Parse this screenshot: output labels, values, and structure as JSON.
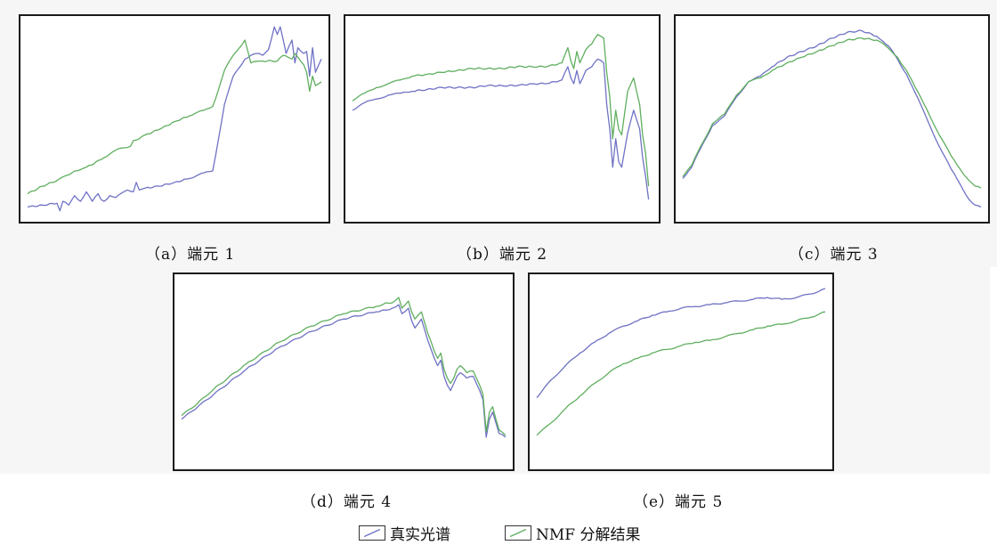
{
  "colors": {
    "real": "#6f72c4",
    "nmf": "#5fae5f"
  },
  "legend": {
    "real_label": "真实光谱",
    "nmf_label": "NMF 分解结果"
  },
  "chart_data": [
    {
      "type": "line",
      "caption": "（a）端元 1",
      "xlim": [
        0,
        100
      ],
      "ylim": [
        0,
        100
      ],
      "series": [
        {
          "name": "真实光谱",
          "x": [
            0,
            5,
            10,
            11,
            12,
            14,
            16,
            18,
            20,
            22,
            24,
            25,
            26,
            28,
            30,
            34,
            36,
            37,
            38,
            40,
            45,
            50,
            55,
            60,
            63,
            65,
            67,
            70,
            74,
            76,
            78,
            80,
            82,
            84,
            85,
            86,
            88,
            90,
            91,
            92,
            94,
            95,
            96,
            97,
            98,
            100
          ],
          "values": [
            4,
            5,
            6,
            2,
            7,
            5,
            10,
            7,
            12,
            7,
            11,
            8,
            7,
            10,
            9,
            13,
            12,
            17,
            13,
            14,
            15,
            17,
            19,
            22,
            23,
            40,
            58,
            73,
            82,
            84,
            85,
            84,
            87,
            99,
            95,
            99,
            85,
            92,
            80,
            88,
            85,
            86,
            73,
            88,
            75,
            82
          ]
        },
        {
          "name": "NMF 分解结果",
          "x": [
            0,
            5,
            10,
            14,
            16,
            20,
            25,
            26,
            28,
            30,
            35,
            36,
            38,
            40,
            45,
            50,
            55,
            60,
            63,
            65,
            67,
            70,
            74,
            76,
            80,
            85,
            87,
            90,
            91,
            92,
            94,
            95,
            96,
            97,
            98,
            100
          ],
          "values": [
            11,
            15,
            18,
            21,
            23,
            25,
            29,
            30,
            32,
            34,
            36,
            39,
            40,
            42,
            45,
            49,
            52,
            55,
            57,
            66,
            76,
            84,
            92,
            80,
            81,
            81,
            84,
            82,
            85,
            83,
            79,
            75,
            65,
            73,
            68,
            70
          ]
        }
      ]
    },
    {
      "type": "line",
      "caption": "（b）端元 2",
      "xlim": [
        0,
        100
      ],
      "ylim": [
        0,
        100
      ],
      "series": [
        {
          "name": "真实光谱",
          "x": [
            0,
            4,
            8,
            12,
            16,
            20,
            25,
            30,
            35,
            40,
            45,
            50,
            55,
            60,
            65,
            70,
            72,
            73,
            74,
            75,
            76,
            78,
            80,
            82,
            84,
            85,
            86,
            87,
            88,
            89,
            90,
            92,
            94,
            96,
            97,
            98,
            99
          ],
          "values": [
            55,
            59,
            61,
            63,
            64,
            65,
            66,
            67,
            67,
            67,
            68,
            68,
            68,
            69,
            69,
            71,
            78,
            72,
            69,
            76,
            69,
            76,
            78,
            82,
            80,
            58,
            45,
            25,
            40,
            28,
            25,
            43,
            55,
            45,
            30,
            20,
            8
          ]
        },
        {
          "name": "NMF 分解结果",
          "x": [
            0,
            4,
            8,
            12,
            16,
            20,
            25,
            30,
            35,
            40,
            45,
            50,
            55,
            60,
            65,
            70,
            72,
            73,
            74,
            75,
            76,
            78,
            80,
            82,
            84,
            85,
            86,
            87,
            88,
            89,
            90,
            92,
            94,
            96,
            97,
            98,
            99
          ],
          "values": [
            60,
            64,
            67,
            69,
            71,
            73,
            74,
            75,
            76,
            77,
            77,
            77,
            78,
            78,
            78,
            80,
            88,
            81,
            77,
            86,
            80,
            87,
            90,
            95,
            93,
            75,
            62,
            40,
            55,
            45,
            42,
            65,
            72,
            58,
            42,
            32,
            15
          ]
        }
      ]
    },
    {
      "type": "line",
      "caption": "（c）端元 3",
      "xlim": [
        0,
        100
      ],
      "ylim": [
        0,
        100
      ],
      "series": [
        {
          "name": "真实光谱",
          "x": [
            0,
            3,
            6,
            10,
            14,
            18,
            22,
            26,
            30,
            35,
            40,
            45,
            50,
            55,
            60,
            65,
            68,
            70,
            72,
            75,
            78,
            82,
            86,
            90,
            93,
            96,
            98,
            100
          ],
          "values": [
            19,
            25,
            35,
            47,
            52,
            62,
            70,
            73,
            78,
            83,
            86,
            89,
            93,
            96,
            97,
            94,
            90,
            87,
            82,
            74,
            64,
            50,
            36,
            24,
            16,
            8,
            5,
            4
          ]
        },
        {
          "name": "NMF 分解结果",
          "x": [
            0,
            3,
            6,
            10,
            14,
            18,
            22,
            26,
            30,
            35,
            40,
            45,
            50,
            55,
            60,
            65,
            68,
            70,
            72,
            75,
            78,
            82,
            86,
            90,
            93,
            96,
            98,
            100
          ],
          "values": [
            20,
            26,
            36,
            48,
            53,
            63,
            70,
            72,
            76,
            80,
            83,
            86,
            89,
            92,
            93,
            92,
            89,
            86,
            83,
            76,
            67,
            55,
            42,
            31,
            24,
            18,
            15,
            14
          ]
        }
      ]
    },
    {
      "type": "line",
      "caption": "（d）端元 4",
      "xlim": [
        0,
        100
      ],
      "ylim": [
        0,
        100
      ],
      "series": [
        {
          "name": "真实光谱",
          "x": [
            0,
            5,
            10,
            20,
            30,
            40,
            50,
            60,
            62,
            63,
            65,
            67,
            68,
            70,
            71,
            72,
            74,
            75,
            76,
            78,
            79,
            80,
            81,
            82,
            83,
            84,
            85,
            86,
            88,
            90,
            91,
            92,
            93,
            94,
            95,
            96,
            97,
            98,
            100
          ],
          "values": [
            24,
            31,
            38,
            52,
            64,
            73,
            80,
            84,
            85,
            85,
            86,
            88,
            83,
            86,
            79,
            75,
            80,
            74,
            68,
            58,
            54,
            57,
            48,
            43,
            40,
            44,
            48,
            50,
            47,
            48,
            44,
            40,
            35,
            14,
            24,
            28,
            22,
            16,
            14
          ]
        },
        {
          "name": "NMF 分解结果",
          "x": [
            0,
            5,
            10,
            20,
            30,
            40,
            50,
            60,
            62,
            63,
            65,
            67,
            68,
            70,
            71,
            72,
            74,
            75,
            76,
            78,
            79,
            80,
            81,
            82,
            83,
            84,
            85,
            86,
            88,
            90,
            91,
            92,
            93,
            94,
            95,
            96,
            97,
            98,
            100
          ],
          "values": [
            26,
            33,
            41,
            55,
            67,
            76,
            83,
            87,
            88,
            89,
            89,
            92,
            86,
            90,
            84,
            80,
            84,
            78,
            72,
            62,
            58,
            61,
            52,
            47,
            44,
            47,
            52,
            54,
            50,
            51,
            47,
            43,
            38,
            17,
            28,
            31,
            24,
            18,
            15
          ]
        }
      ]
    },
    {
      "type": "line",
      "caption": "（e）端元 5",
      "xlim": [
        0,
        100
      ],
      "ylim": [
        0,
        100
      ],
      "series": [
        {
          "name": "真实光谱",
          "x": [
            0,
            5,
            10,
            15,
            20,
            25,
            30,
            35,
            40,
            45,
            50,
            55,
            60,
            65,
            70,
            75,
            80,
            85,
            90,
            95,
            100
          ],
          "values": [
            36,
            46,
            54,
            61,
            67,
            72,
            76,
            79,
            82,
            84,
            86,
            87,
            88,
            89,
            90,
            91,
            92,
            91,
            92,
            94,
            97
          ]
        },
        {
          "name": "NMF 分解结果",
          "x": [
            0,
            5,
            10,
            15,
            20,
            25,
            30,
            35,
            40,
            45,
            50,
            55,
            60,
            65,
            70,
            75,
            80,
            85,
            90,
            95,
            100
          ],
          "values": [
            15,
            22,
            30,
            37,
            44,
            50,
            55,
            58,
            61,
            63,
            65,
            67,
            68,
            70,
            72,
            74,
            76,
            77,
            79,
            81,
            84
          ]
        }
      ]
    }
  ]
}
